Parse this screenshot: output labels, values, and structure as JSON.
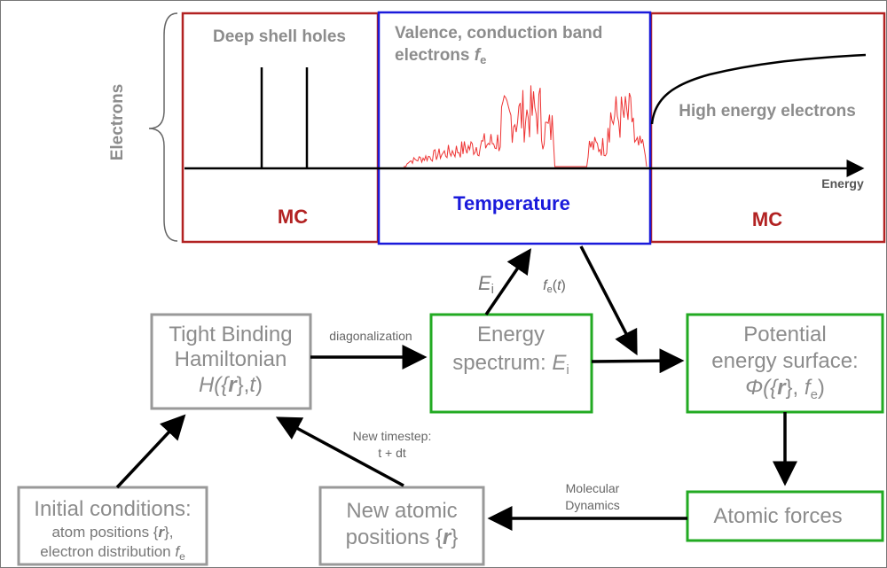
{
  "side_label": "Electrons",
  "energy_axis_label": "Energy",
  "panels": [
    {
      "title": "Deep shell holes",
      "method": "MC"
    },
    {
      "title_line1": "Valence, conduction band",
      "title_line2": "electrons ",
      "symbol": "f",
      "subscript": "e",
      "method": "Temperature"
    },
    {
      "title": "High energy electrons",
      "method": "MC"
    }
  ],
  "nodes": {
    "tight_binding": {
      "line1": "Tight Binding",
      "line2": "Hamiltonian",
      "formula": [
        "H({",
        "r",
        "},",
        "t",
        ")"
      ]
    },
    "energy_spectrum": {
      "line1": "Energy",
      "line2": "spectrum: ",
      "symbol": "E",
      "subscript": "i"
    },
    "potential": {
      "line1": "Potential",
      "line2": "energy surface:",
      "formula": [
        "Φ({",
        "r",
        "}, ",
        "f",
        "e",
        ")"
      ]
    },
    "atomic_forces": {
      "line1": "Atomic forces"
    },
    "initial_conditions": {
      "line1": "Initial conditions:",
      "line2": [
        "atom positions {",
        "r",
        "},"
      ],
      "line3": [
        "electron distribution ",
        "f",
        "e"
      ]
    },
    "new_positions": {
      "line1": "New atomic",
      "line2": [
        "positions {",
        "r",
        "}"
      ]
    }
  },
  "edges": {
    "diagonalization": "diagonalization",
    "energy_levels": [
      "E",
      "i"
    ],
    "distribution": [
      "f",
      "e",
      "(",
      "t",
      ")"
    ],
    "timestep": [
      "New timestep:",
      "t + dt"
    ],
    "dynamics": [
      "Molecular",
      "Dynamics"
    ]
  }
}
